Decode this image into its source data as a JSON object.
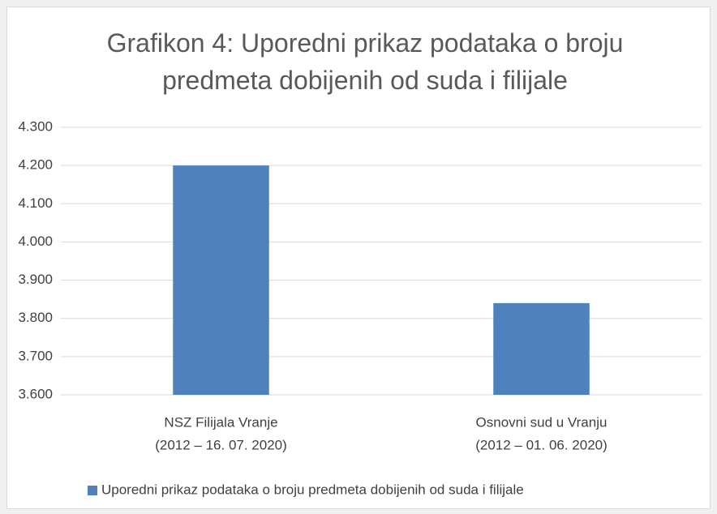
{
  "chart_data": {
    "type": "bar",
    "title": "Grafikon 4: Uporedni prikaz podataka o broju predmeta dobijenih od suda i filijale",
    "categories": [
      [
        "NSZ Filijala Vranje",
        "(2012 – 16. 07. 2020)"
      ],
      [
        "Osnovni sud u Vranju",
        "(2012 – 01. 06. 2020)"
      ]
    ],
    "series": [
      {
        "name": "Uporedni prikaz podataka o broju predmeta dobijenih od suda i filijale",
        "color": "#4f81bd",
        "values": [
          4200,
          3840
        ]
      }
    ],
    "ylim": [
      3600,
      4300
    ],
    "yticks": [
      {
        "value": 3600,
        "label": "3.600"
      },
      {
        "value": 3700,
        "label": "3.700"
      },
      {
        "value": 3800,
        "label": "3.800"
      },
      {
        "value": 3900,
        "label": "3.900"
      },
      {
        "value": 4000,
        "label": "4.000"
      },
      {
        "value": 4100,
        "label": "4.100"
      },
      {
        "value": 4200,
        "label": "4.200"
      },
      {
        "value": 4300,
        "label": "4.300"
      }
    ],
    "grid": true,
    "legend": "bottom"
  }
}
